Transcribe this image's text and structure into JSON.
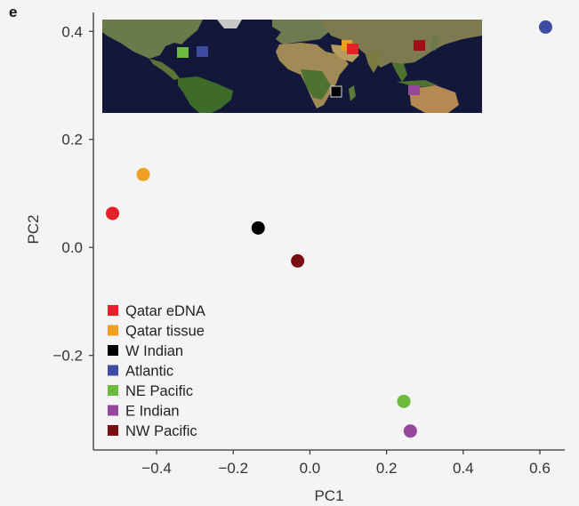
{
  "panel_label": "e",
  "chart_data": {
    "type": "scatter",
    "xlabel": "PC1",
    "ylabel": "PC2",
    "xlim": [
      -0.565,
      0.665
    ],
    "ylim": [
      -0.375,
      0.435
    ],
    "xticks": [
      -0.4,
      -0.2,
      0.0,
      0.2,
      0.4,
      0.6
    ],
    "xtick_labels": [
      "−0.4",
      "−0.2",
      "0.0",
      "0.2",
      "0.4",
      "0.6"
    ],
    "yticks": [
      -0.2,
      0.0,
      0.2,
      0.4
    ],
    "ytick_labels": [
      "−0.2",
      "0.0",
      "0.2",
      "0.4"
    ],
    "legend_position": "bottom-left",
    "series": [
      {
        "name": "Qatar eDNA",
        "color": "#e5202a",
        "x": -0.515,
        "y": 0.063
      },
      {
        "name": "Qatar tissue",
        "color": "#f0a020",
        "x": -0.435,
        "y": 0.135
      },
      {
        "name": "W Indian",
        "color": "#000000",
        "x": -0.135,
        "y": 0.036
      },
      {
        "name": "Atlantic",
        "color": "#3d4ba0",
        "x": 0.615,
        "y": 0.408
      },
      {
        "name": "NE Pacific",
        "color": "#6cbb3c",
        "x": 0.245,
        "y": -0.285
      },
      {
        "name": "E Indian",
        "color": "#94489c",
        "x": 0.262,
        "y": -0.34
      },
      {
        "name": "NW Pacific",
        "color": "#7a0e12",
        "x": -0.032,
        "y": -0.025
      }
    ]
  },
  "inset_map": {
    "markers": [
      {
        "name": "Atlantic",
        "color": "#3d4ba0"
      },
      {
        "name": "NE Pacific",
        "color": "#6cbb3c"
      },
      {
        "name": "Qatar tissue",
        "color": "#f0a020"
      },
      {
        "name": "Qatar eDNA",
        "color": "#e5202a"
      },
      {
        "name": "NW Pacific",
        "color": "#a01018"
      },
      {
        "name": "W Indian",
        "color": "#000000"
      },
      {
        "name": "E Indian",
        "color": "#94489c"
      }
    ]
  }
}
